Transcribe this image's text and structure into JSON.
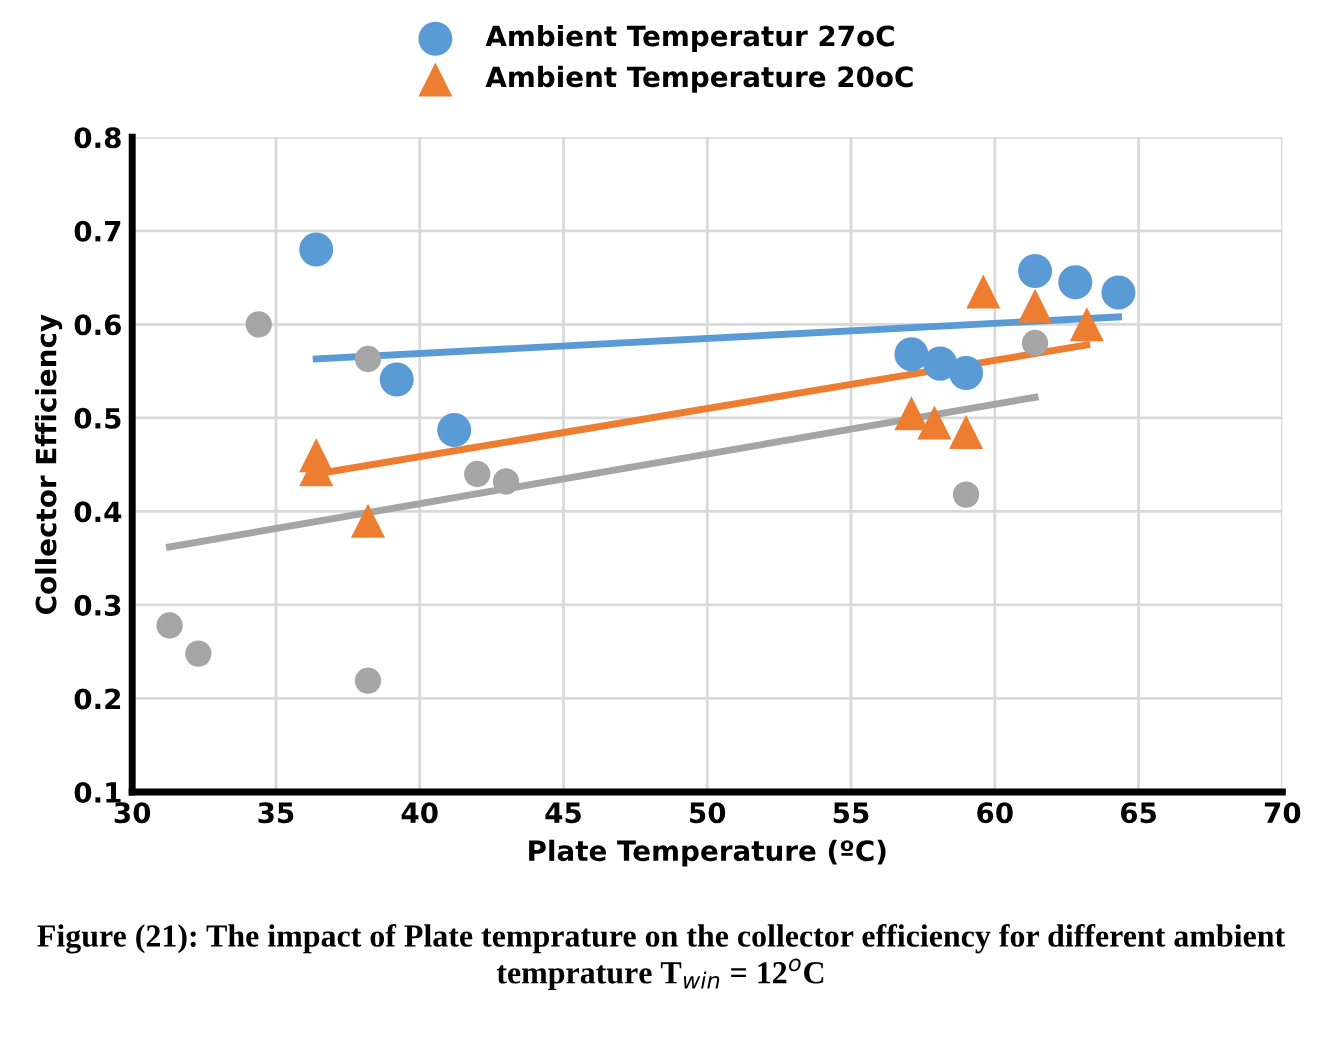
{
  "chart_data": {
    "type": "scatter",
    "xlabel": "Plate Temperature (ºC)",
    "ylabel": "Collector Efficiency",
    "xlim": [
      30,
      70
    ],
    "xticks": [
      30,
      35,
      40,
      45,
      50,
      55,
      60,
      65,
      70
    ],
    "ylim": [
      0.1,
      0.8
    ],
    "yticks": [
      0.1,
      0.2,
      0.3,
      0.4,
      0.5,
      0.6,
      0.7,
      0.8
    ],
    "grid": true,
    "legend": "top",
    "annotations": [
      "Figure (21): The impact of Plate temprature on the collector efficiency for different ambient temprature T$_{win}$ = 12$^{o}$C"
    ],
    "series": [
      {
        "name": "Ambient Temperatur 27oC",
        "color": "#5b9bd5",
        "marker": "circle",
        "x": [
          36.4,
          39.2,
          41.2,
          57.1,
          58.1,
          59.0,
          61.4,
          62.8,
          64.3
        ],
        "values": [
          0.68,
          0.541,
          0.487,
          0.568,
          0.558,
          0.548,
          0.657,
          0.645,
          0.634
        ]
      },
      {
        "name": "Ambient Temperature 20oC",
        "color": "#ed7d31",
        "marker": "triangle",
        "x": [
          36.4,
          36.4,
          38.2,
          57.1,
          57.9,
          59.0,
          59.6,
          61.4,
          63.2
        ],
        "values": [
          0.46,
          0.445,
          0.39,
          0.505,
          0.495,
          0.485,
          0.635,
          0.62,
          0.6
        ]
      },
      {
        "color": "#a5a5a5",
        "marker": "circle",
        "x": [
          31.3,
          32.3,
          34.4,
          38.2,
          38.2,
          42.0,
          43.0,
          59.0,
          61.4
        ],
        "values": [
          0.278,
          0.248,
          0.6,
          0.563,
          0.219,
          0.44,
          0.432,
          0.418,
          0.58
        ]
      },
      {
        "type": "line",
        "color": "#5b9bd5",
        "marker": "none",
        "x": [
          36.4,
          64.3
        ],
        "values": [
          0.563,
          0.608
        ]
      },
      {
        "type": "line",
        "color": "#ed7d31",
        "marker": "none",
        "x": [
          36.4,
          63.2
        ],
        "values": [
          0.44,
          0.578
        ]
      },
      {
        "type": "line",
        "color": "#a5a5a5",
        "marker": "none",
        "x": [
          31.3,
          61.4
        ],
        "values": [
          0.362,
          0.522
        ]
      }
    ]
  }
}
